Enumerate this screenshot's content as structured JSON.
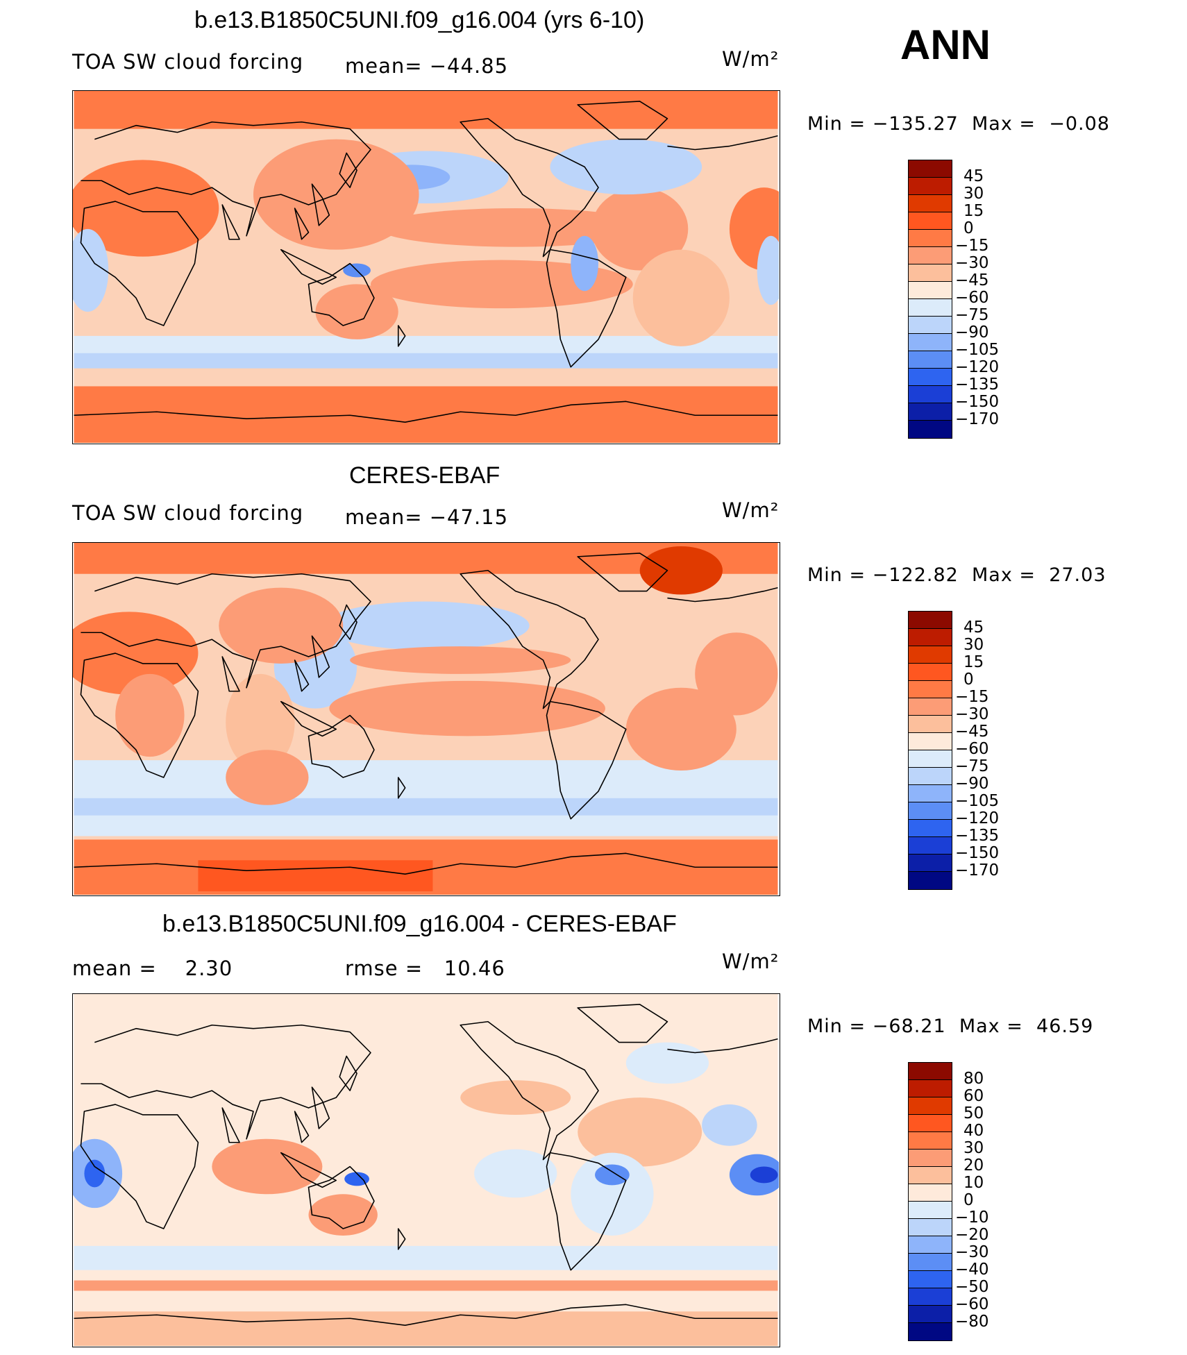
{
  "season": "ANN",
  "panels": [
    {
      "title": "b.e13.B1850C5UNI.f09_g16.004 (yrs 6-10)",
      "left_text": "TOA SW cloud forcing",
      "mid_text": "mean= −44.85",
      "units": "W/m²",
      "min_label": "Min",
      "min_value": "−135.27",
      "max_label": "Max",
      "max_value": "−0.08",
      "levels": [
        "45",
        "30",
        "15",
        "0",
        "−15",
        "−30",
        "−45",
        "−60",
        "−75",
        "−90",
        "−105",
        "−120",
        "−135",
        "−150",
        "−170"
      ],
      "background_color": "#fcd2b8"
    },
    {
      "title": "CERES-EBAF",
      "left_text": "TOA SW cloud forcing",
      "mid_text": "mean= −47.15",
      "units": "W/m²",
      "min_label": "Min",
      "min_value": "−122.82",
      "max_label": "Max",
      "max_value": "27.03",
      "levels": [
        "45",
        "30",
        "15",
        "0",
        "−15",
        "−30",
        "−45",
        "−60",
        "−75",
        "−90",
        "−105",
        "−120",
        "−135",
        "−150",
        "−170"
      ],
      "background_color": "#fcd2b8"
    },
    {
      "title": "b.e13.B1850C5UNI.f09_g16.004 - CERES-EBAF",
      "left_text": "mean =    2.30",
      "mid_text": "rmse =   10.46",
      "units": "W/m²",
      "min_label": "Min",
      "min_value": "−68.21",
      "max_label": "Max",
      "max_value": "46.59",
      "levels": [
        "80",
        "60",
        "50",
        "40",
        "30",
        "20",
        "10",
        "0",
        "−10",
        "−20",
        "−30",
        "−40",
        "−50",
        "−60",
        "−80"
      ],
      "background_color": "#feeadb"
    }
  ],
  "colormap": [
    "#8c0a00",
    "#bd1c00",
    "#e03a00",
    "#ff5720",
    "#ff7a45",
    "#fc9c76",
    "#fcbf9c",
    "#feeadb",
    "#dcebfa",
    "#bcd5fa",
    "#8eb4fa",
    "#5c8ef5",
    "#2e64f0",
    "#1b3fd6",
    "#0c1fa8",
    "#000883"
  ]
}
